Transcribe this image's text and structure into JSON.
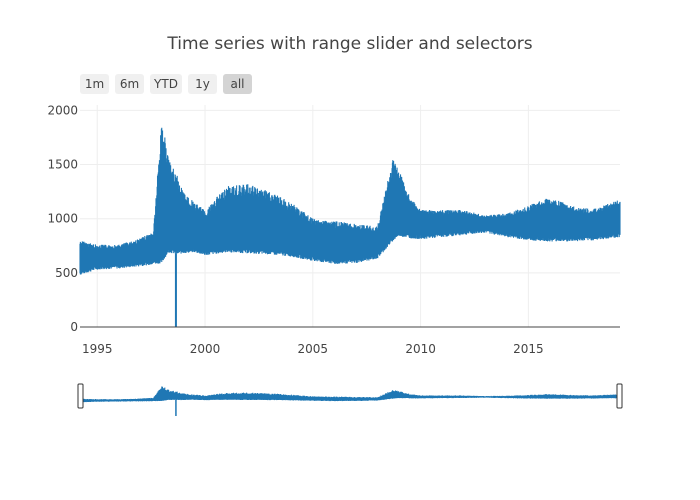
{
  "title": "Time series with range slider and selectors",
  "range_selector": {
    "buttons": [
      {
        "label": "1m"
      },
      {
        "label": "6m"
      },
      {
        "label": "YTD"
      },
      {
        "label": "1y"
      },
      {
        "label": "all",
        "active": true
      }
    ]
  },
  "chart_data": {
    "type": "area",
    "description_of_marks": "dense daily band between a lower and upper envelope",
    "xlim": [
      1994.2,
      2019.25
    ],
    "ylim": [
      0,
      2050
    ],
    "x_ticks": [
      1995,
      2000,
      2005,
      2010,
      2015
    ],
    "x_tick_labels": [
      "1995",
      "2000",
      "2005",
      "2010",
      "2015"
    ],
    "y_ticks": [
      0,
      500,
      1000,
      1500,
      2000
    ],
    "y_tick_labels": [
      "0",
      "500",
      "1000",
      "1500",
      "2000"
    ],
    "series_color": "#1f77b4",
    "grid": true,
    "range_slider": true,
    "envelope": [
      {
        "x": 1994.2,
        "low": 490,
        "high": 800
      },
      {
        "x": 1995.0,
        "low": 540,
        "high": 760
      },
      {
        "x": 1996.0,
        "low": 550,
        "high": 760
      },
      {
        "x": 1997.0,
        "low": 570,
        "high": 820
      },
      {
        "x": 1997.6,
        "low": 590,
        "high": 880
      },
      {
        "x": 1998.0,
        "low": 600,
        "high": 1950
      },
      {
        "x": 1998.3,
        "low": 700,
        "high": 1550
      },
      {
        "x": 1998.7,
        "low": 680,
        "high": 1400
      },
      {
        "x": 1999.0,
        "low": 690,
        "high": 1250
      },
      {
        "x": 1999.5,
        "low": 700,
        "high": 1150
      },
      {
        "x": 2000.0,
        "low": 670,
        "high": 1080
      },
      {
        "x": 2001.0,
        "low": 700,
        "high": 1300
      },
      {
        "x": 2002.0,
        "low": 690,
        "high": 1320
      },
      {
        "x": 2003.0,
        "low": 680,
        "high": 1250
      },
      {
        "x": 2004.0,
        "low": 660,
        "high": 1150
      },
      {
        "x": 2005.0,
        "low": 620,
        "high": 1000
      },
      {
        "x": 2006.0,
        "low": 590,
        "high": 980
      },
      {
        "x": 2007.0,
        "low": 600,
        "high": 950
      },
      {
        "x": 2008.0,
        "low": 640,
        "high": 930
      },
      {
        "x": 2008.7,
        "low": 800,
        "high": 1550
      },
      {
        "x": 2009.0,
        "low": 850,
        "high": 1450
      },
      {
        "x": 2009.5,
        "low": 830,
        "high": 1200
      },
      {
        "x": 2010.0,
        "low": 820,
        "high": 1080
      },
      {
        "x": 2011.0,
        "low": 840,
        "high": 1080
      },
      {
        "x": 2012.0,
        "low": 860,
        "high": 1080
      },
      {
        "x": 2013.0,
        "low": 880,
        "high": 1030
      },
      {
        "x": 2014.0,
        "low": 840,
        "high": 1050
      },
      {
        "x": 2015.0,
        "low": 810,
        "high": 1120
      },
      {
        "x": 2016.0,
        "low": 800,
        "high": 1200
      },
      {
        "x": 2017.0,
        "low": 800,
        "high": 1120
      },
      {
        "x": 2018.0,
        "low": 810,
        "high": 1090
      },
      {
        "x": 2019.25,
        "low": 840,
        "high": 1180
      }
    ],
    "spike": {
      "x": 1998.65,
      "value": 0
    }
  }
}
